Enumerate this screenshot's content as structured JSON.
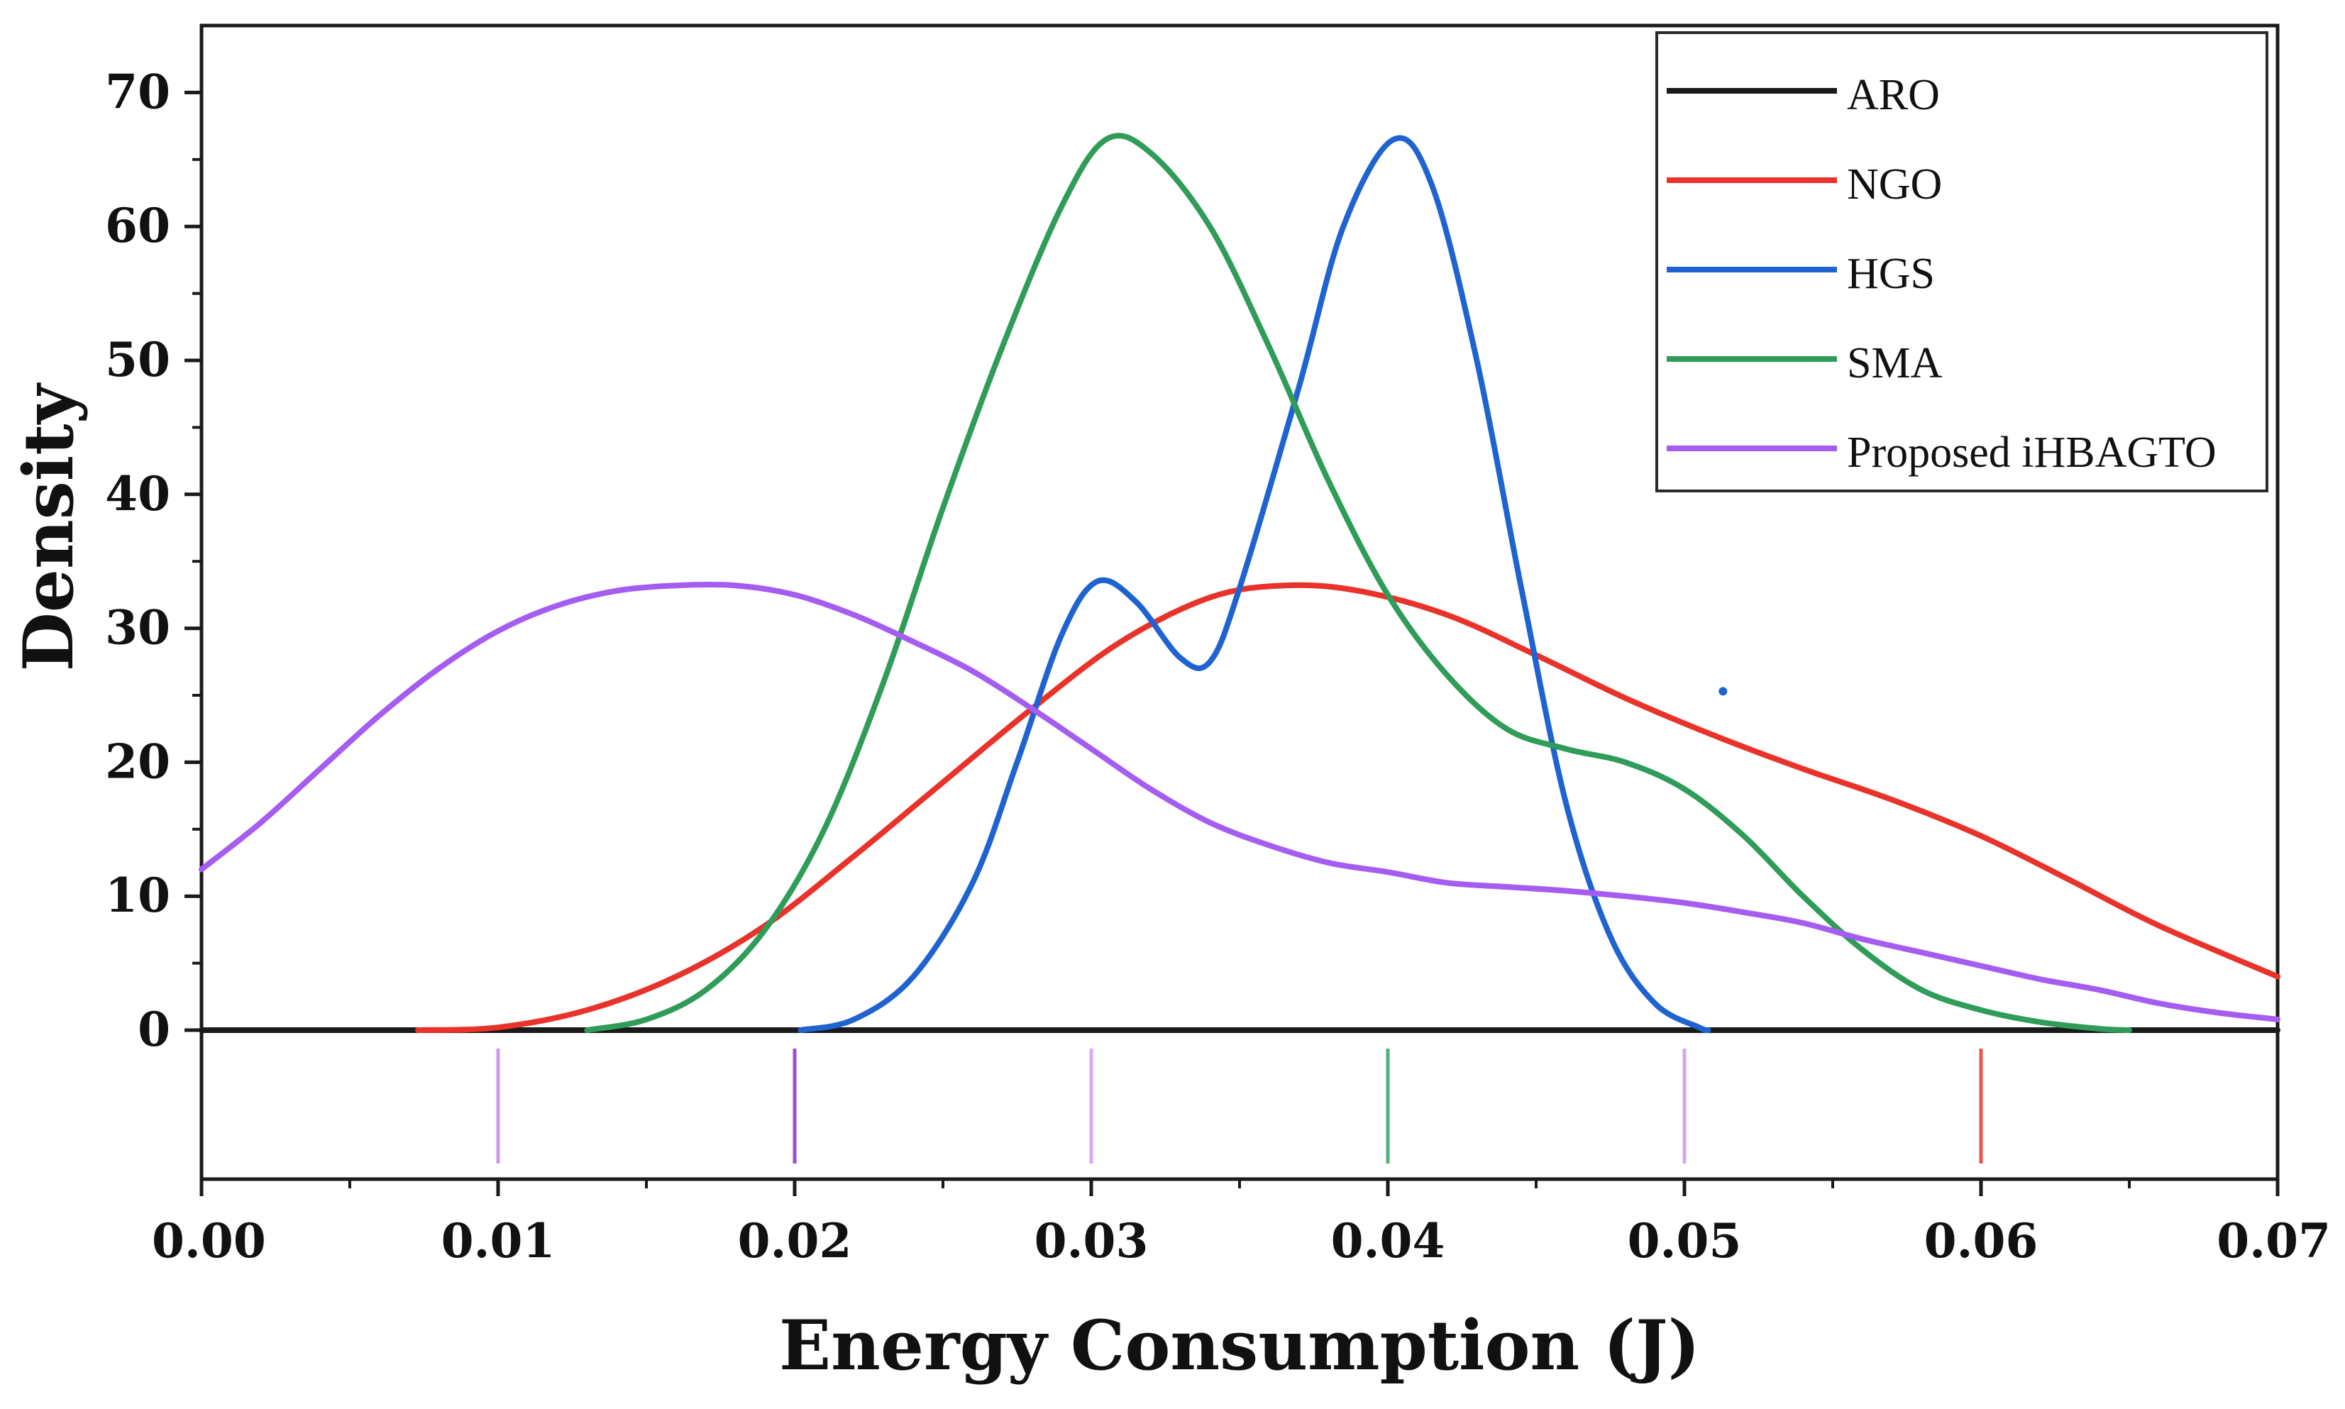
{
  "chart_data": {
    "type": "line",
    "title": "",
    "xlabel": "Energy Consumption (J)",
    "ylabel": "Density",
    "xlim": [
      0,
      0.07
    ],
    "ylim": [
      0,
      75
    ],
    "x_ticks": [
      0.0,
      0.01,
      0.02,
      0.03,
      0.04,
      0.05,
      0.06,
      0.07
    ],
    "x_tick_labels": [
      "0.00",
      "0.01",
      "0.02",
      "0.03",
      "0.04",
      "0.05",
      "0.06",
      "0.07"
    ],
    "y_ticks": [
      0,
      10,
      20,
      30,
      40,
      50,
      60,
      70
    ],
    "y_tick_labels": [
      "0",
      "10",
      "20",
      "30",
      "40",
      "50",
      "60",
      "70"
    ],
    "grid": false,
    "legend_position": "top-right",
    "series": [
      {
        "name": "ARO",
        "color": "#1a1a1a",
        "points": [
          [
            0.0,
            0.0
          ],
          [
            0.07,
            0.0
          ]
        ]
      },
      {
        "name": "NGO",
        "color": "#e8322a",
        "points": [
          [
            0.0073,
            0.0
          ],
          [
            0.01,
            0.2
          ],
          [
            0.013,
            1.5
          ],
          [
            0.016,
            4.0
          ],
          [
            0.019,
            7.8
          ],
          [
            0.022,
            13.0
          ],
          [
            0.025,
            18.5
          ],
          [
            0.028,
            24.0
          ],
          [
            0.031,
            29.0
          ],
          [
            0.034,
            32.3
          ],
          [
            0.0365,
            33.2
          ],
          [
            0.039,
            32.8
          ],
          [
            0.042,
            31.0
          ],
          [
            0.045,
            28.0
          ],
          [
            0.048,
            24.8
          ],
          [
            0.051,
            22.0
          ],
          [
            0.054,
            19.5
          ],
          [
            0.057,
            17.2
          ],
          [
            0.06,
            14.5
          ],
          [
            0.063,
            11.2
          ],
          [
            0.066,
            7.8
          ],
          [
            0.07,
            4.0
          ]
        ]
      },
      {
        "name": "HGS",
        "color": "#1f63d1",
        "points": [
          [
            0.0202,
            0.0
          ],
          [
            0.022,
            0.8
          ],
          [
            0.024,
            4.0
          ],
          [
            0.026,
            11.0
          ],
          [
            0.0275,
            20.0
          ],
          [
            0.029,
            29.5
          ],
          [
            0.0302,
            33.5
          ],
          [
            0.0315,
            32.0
          ],
          [
            0.033,
            27.8
          ],
          [
            0.034,
            27.5
          ],
          [
            0.035,
            33.0
          ],
          [
            0.037,
            48.0
          ],
          [
            0.0385,
            60.0
          ],
          [
            0.0402,
            66.5
          ],
          [
            0.0415,
            63.0
          ],
          [
            0.043,
            50.0
          ],
          [
            0.0445,
            33.0
          ],
          [
            0.046,
            17.0
          ],
          [
            0.0475,
            7.0
          ],
          [
            0.049,
            2.0
          ],
          [
            0.0505,
            0.2
          ],
          [
            0.0508,
            0.0
          ]
        ]
      },
      {
        "name": "SMA",
        "color": "#2f9c5a",
        "points": [
          [
            0.013,
            0.0
          ],
          [
            0.015,
            0.8
          ],
          [
            0.017,
            3.0
          ],
          [
            0.019,
            7.5
          ],
          [
            0.021,
            15.0
          ],
          [
            0.023,
            26.0
          ],
          [
            0.025,
            39.0
          ],
          [
            0.027,
            51.0
          ],
          [
            0.029,
            61.5
          ],
          [
            0.0305,
            66.5
          ],
          [
            0.032,
            65.5
          ],
          [
            0.034,
            60.0
          ],
          [
            0.036,
            51.0
          ],
          [
            0.038,
            41.0
          ],
          [
            0.04,
            32.5
          ],
          [
            0.042,
            26.5
          ],
          [
            0.044,
            22.5
          ],
          [
            0.046,
            21.0
          ],
          [
            0.048,
            20.0
          ],
          [
            0.05,
            18.0
          ],
          [
            0.052,
            14.5
          ],
          [
            0.054,
            10.0
          ],
          [
            0.056,
            6.0
          ],
          [
            0.058,
            3.0
          ],
          [
            0.06,
            1.5
          ],
          [
            0.062,
            0.6
          ],
          [
            0.064,
            0.1
          ],
          [
            0.065,
            0.0
          ]
        ]
      },
      {
        "name": "Proposed iHBAGTO",
        "color": "#a55cf0",
        "points": [
          [
            0.0,
            12.0
          ],
          [
            0.002,
            15.5
          ],
          [
            0.004,
            19.5
          ],
          [
            0.006,
            23.5
          ],
          [
            0.008,
            27.0
          ],
          [
            0.01,
            29.8
          ],
          [
            0.012,
            31.7
          ],
          [
            0.014,
            32.8
          ],
          [
            0.016,
            33.2
          ],
          [
            0.018,
            33.2
          ],
          [
            0.02,
            32.5
          ],
          [
            0.022,
            31.0
          ],
          [
            0.024,
            29.0
          ],
          [
            0.026,
            26.8
          ],
          [
            0.028,
            24.0
          ],
          [
            0.03,
            21.0
          ],
          [
            0.032,
            18.0
          ],
          [
            0.034,
            15.5
          ],
          [
            0.036,
            13.8
          ],
          [
            0.038,
            12.5
          ],
          [
            0.04,
            11.8
          ],
          [
            0.042,
            11.0
          ],
          [
            0.044,
            10.7
          ],
          [
            0.046,
            10.4
          ],
          [
            0.048,
            10.0
          ],
          [
            0.05,
            9.5
          ],
          [
            0.052,
            8.8
          ],
          [
            0.054,
            8.0
          ],
          [
            0.056,
            6.8
          ],
          [
            0.058,
            5.8
          ],
          [
            0.06,
            4.8
          ],
          [
            0.062,
            3.8
          ],
          [
            0.064,
            3.0
          ],
          [
            0.066,
            2.0
          ],
          [
            0.068,
            1.3
          ],
          [
            0.07,
            0.8
          ]
        ]
      }
    ],
    "rug_marks": [
      {
        "x": 0.01,
        "color": "#cc99ee"
      },
      {
        "x": 0.02,
        "color": "#9a4fcf"
      },
      {
        "x": 0.03,
        "color": "#d9aaf0"
      },
      {
        "x": 0.04,
        "color": "#4fb07a"
      },
      {
        "x": 0.05,
        "color": "#d0a8f2"
      },
      {
        "x": 0.06,
        "color": "#e8564e"
      }
    ],
    "stray_mark": {
      "x": 0.0513,
      "y": 25.3,
      "color": "#1f63d1"
    }
  }
}
